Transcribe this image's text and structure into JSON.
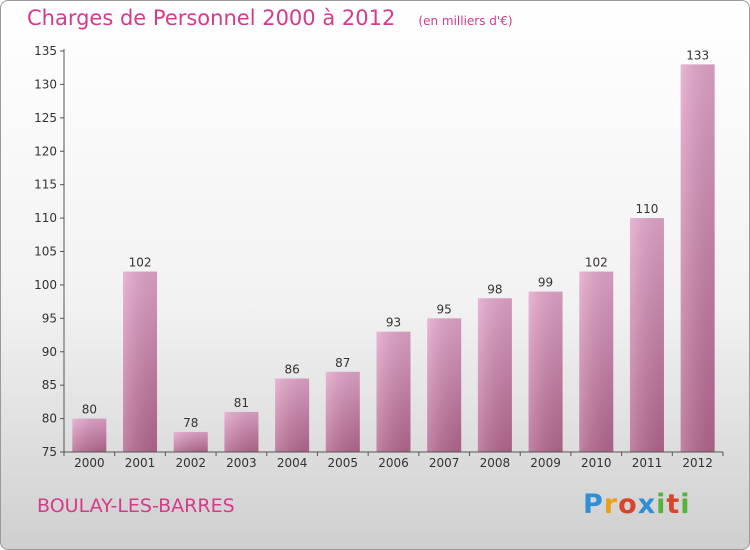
{
  "header": {
    "title": "Charges de Personnel 2000 à 2012",
    "unit": "(en milliers d'€)"
  },
  "footer": {
    "town": "BOULAY-LES-BARRES",
    "logo": "Proxiti"
  },
  "colors": {
    "title": "#d63a8a",
    "bar_top": "#e3a6cb",
    "bar_bottom": "#b4678f",
    "axis": "#555555"
  },
  "chart_data": {
    "type": "bar",
    "title": "Charges de Personnel 2000 à 2012",
    "subtitle": "(en milliers d'€)",
    "xlabel": "",
    "ylabel": "",
    "categories": [
      "2000",
      "2001",
      "2002",
      "2003",
      "2004",
      "2005",
      "2006",
      "2007",
      "2008",
      "2009",
      "2010",
      "2011",
      "2012"
    ],
    "values": [
      80,
      102,
      78,
      81,
      86,
      87,
      93,
      95,
      98,
      99,
      102,
      110,
      133
    ],
    "ylim": [
      75,
      135
    ],
    "yticks": [
      75,
      80,
      85,
      90,
      95,
      100,
      105,
      110,
      115,
      120,
      125,
      130,
      135
    ],
    "grid": false,
    "legend": "none"
  }
}
